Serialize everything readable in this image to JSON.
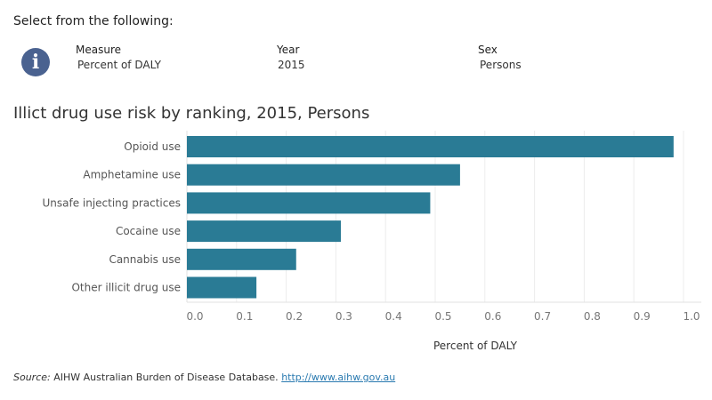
{
  "prompt": "Select from the following:",
  "filters": [
    {
      "label": "Measure",
      "value": "Percent of DALY"
    },
    {
      "label": "Year",
      "value": "2015"
    },
    {
      "label": "Sex",
      "value": "Persons"
    }
  ],
  "source": {
    "prefix": "Source:",
    "text": "AIHW Australian Burden of Disease Database.",
    "link": "http://www.aihw.gov.au"
  },
  "chart_data": {
    "type": "bar",
    "orientation": "horizontal",
    "title": "Illict drug use risk by ranking, 2015, Persons",
    "categories": [
      "Opioid use",
      "Amphetamine use",
      "Unsafe injecting practices",
      "Cocaine use",
      "Cannabis use",
      "Other illicit drug use"
    ],
    "values": [
      0.98,
      0.55,
      0.49,
      0.31,
      0.22,
      0.14
    ],
    "xlabel": "Percent of DALY",
    "ylabel": "",
    "xlim": [
      0,
      1.0
    ],
    "xticks": [
      "0.0",
      "0.1",
      "0.2",
      "0.3",
      "0.4",
      "0.5",
      "0.6",
      "0.7",
      "0.8",
      "0.9",
      "1.0"
    ],
    "grid": true,
    "bar_color": "#2a7b95"
  }
}
